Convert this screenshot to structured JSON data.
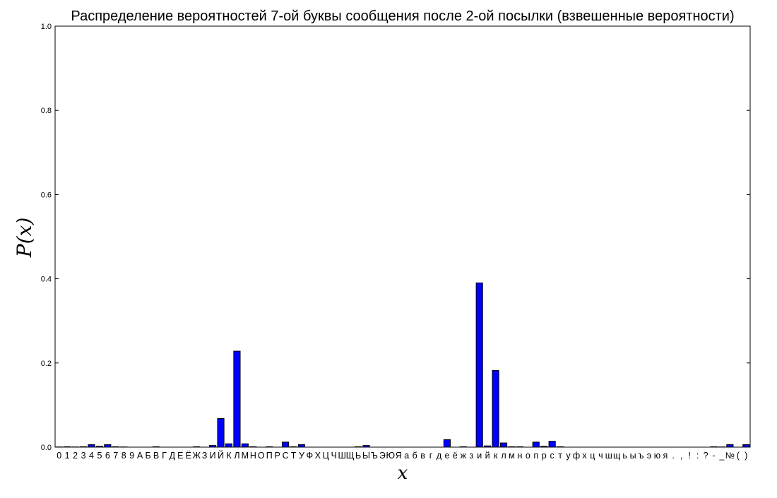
{
  "chart_data": {
    "type": "bar",
    "title": "Распределение вероятностей 7-ой буквы сообщения после 2-ой посылки (взвешенные вероятности)",
    "xlabel": "x",
    "ylabel": "P(x)",
    "ylim": [
      0,
      1
    ],
    "yticks": [
      0.0,
      0.2,
      0.4,
      0.6,
      0.8,
      1.0
    ],
    "ytick_labels": [
      "0.0",
      "0.2",
      "0.4",
      "0.6",
      "0.8",
      "1.0"
    ],
    "grid": false,
    "legend": "none",
    "bar_color": "#0000ff",
    "categories": [
      "0",
      "1",
      "2",
      "3",
      "4",
      "5",
      "6",
      "7",
      "8",
      "9",
      "А",
      "Б",
      "В",
      "Г",
      "Д",
      "Е",
      "Ё",
      "Ж",
      "З",
      "И",
      "Й",
      "К",
      "Л",
      "М",
      "Н",
      "О",
      "П",
      "Р",
      "С",
      "Т",
      "У",
      "Ф",
      "Х",
      "Ц",
      "Ч",
      "Ш",
      "Щ",
      "Ь",
      "Ы",
      "Ъ",
      "Э",
      "Ю",
      "Я",
      "а",
      "б",
      "в",
      "г",
      "д",
      "е",
      "ё",
      "ж",
      "з",
      "и",
      "й",
      "к",
      "л",
      "м",
      "н",
      "о",
      "п",
      "р",
      "с",
      "т",
      "у",
      "ф",
      "х",
      "ц",
      "ч",
      "ш",
      "щ",
      "ь",
      "ы",
      "ъ",
      "э",
      "ю",
      "я",
      ".",
      ",",
      "!",
      ":",
      "?",
      "-",
      "_",
      "№",
      "(",
      ")"
    ],
    "values": [
      0.0005,
      0.001,
      0.0005,
      0.001,
      0.006,
      0.002,
      0.006,
      0.001,
      0.0005,
      0,
      0,
      0,
      0.001,
      0,
      0,
      0,
      0,
      0.001,
      0,
      0.004,
      0.068,
      0.008,
      0.228,
      0.008,
      0.001,
      0,
      0.001,
      0,
      0.012,
      0.001,
      0.006,
      0,
      0,
      0,
      0,
      0,
      0,
      0.001,
      0.004,
      0,
      0,
      0,
      0,
      0,
      0,
      0,
      0,
      0,
      0.018,
      0,
      0.001,
      0,
      0.39,
      0.003,
      0.182,
      0.01,
      0.001,
      0.001,
      0,
      0.012,
      0.002,
      0.014,
      0.001,
      0,
      0,
      0,
      0,
      0,
      0,
      0,
      0,
      0,
      0,
      0,
      0,
      0,
      0,
      0,
      0,
      0,
      0,
      0.001,
      0.0005,
      0.006,
      0,
      0.006
    ]
  }
}
